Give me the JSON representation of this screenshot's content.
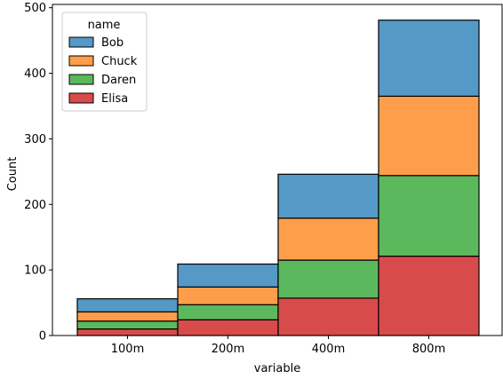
{
  "chart_data": {
    "type": "bar",
    "stacked": true,
    "categories": [
      "100m",
      "200m",
      "400m",
      "800m"
    ],
    "series": [
      {
        "name": "Elisa",
        "values": [
          10,
          24,
          57,
          121
        ],
        "color": "#d84b4b"
      },
      {
        "name": "Daren",
        "values": [
          12,
          23,
          58,
          123
        ],
        "color": "#5cb85c"
      },
      {
        "name": "Chuck",
        "values": [
          14,
          27,
          64,
          121
        ],
        "color": "#ff9e4a"
      },
      {
        "name": "Bob",
        "values": [
          20,
          35,
          67,
          116
        ],
        "color": "#5599c7"
      }
    ],
    "legend_order": [
      "Bob",
      "Chuck",
      "Daren",
      "Elisa"
    ],
    "legend_title": "name",
    "legend_position": "top-left",
    "xlabel": "variable",
    "ylabel": "Count",
    "ylim": [
      0,
      505
    ],
    "yticks": [
      0,
      100,
      200,
      300,
      400,
      500
    ],
    "grid": false
  }
}
